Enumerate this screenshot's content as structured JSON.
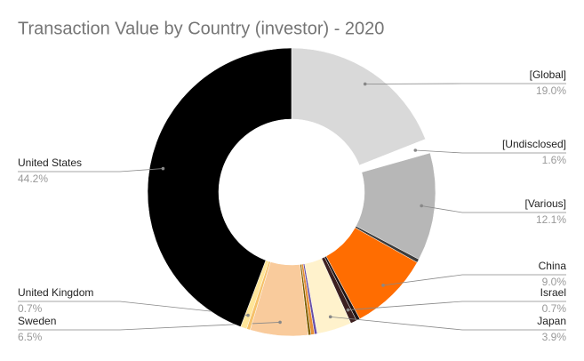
{
  "chart_data": {
    "type": "donut",
    "title": "Transaction Value by Country (investor) - 2020",
    "categories": [
      "[Global]",
      "[Undisclosed]",
      "[Various]",
      null,
      "China",
      null,
      "Israel",
      "Japan",
      null,
      null,
      null,
      "Sweden",
      null,
      "United Kingdom",
      "United States"
    ],
    "values": [
      19.0,
      1.6,
      12.1,
      0.4,
      9.0,
      0.4,
      0.7,
      3.9,
      0.3,
      0.4,
      0.3,
      6.5,
      0.4,
      0.7,
      44.2
    ],
    "value_labels": [
      "19.0%",
      "1.6%",
      "12.1%",
      null,
      "9.0%",
      null,
      "0.7%",
      "3.9%",
      null,
      null,
      null,
      "6.5%",
      null,
      "0.7%",
      "44.2%"
    ],
    "colors": [
      "#d9d9d9",
      "#ffffff",
      "#b7b7b7",
      "#3c3c3c",
      "#ff6d01",
      "#1f1414",
      "#3d2020",
      "#fff2cc",
      "#674ea7",
      "#e69138",
      "#7f6000",
      "#f9cb9c",
      "#f6c26b",
      "#ffe599",
      "#000000"
    ]
  }
}
